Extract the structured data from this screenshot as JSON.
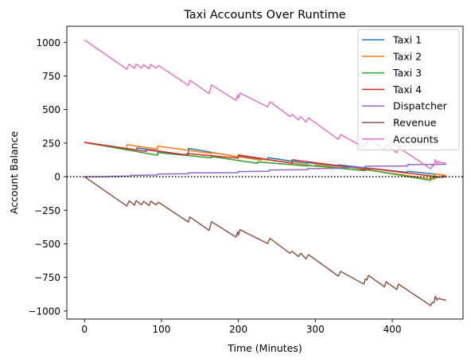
{
  "chart_data": {
    "type": "line",
    "title": "Taxi Accounts Over Runtime",
    "xlabel": "Time (Minutes)",
    "ylabel": "Account Balance",
    "xlim": [
      -23,
      492
    ],
    "ylim": [
      -1060,
      1120
    ],
    "xticks": [
      0,
      100,
      200,
      300,
      400
    ],
    "yticks": [
      -1000,
      -750,
      -500,
      -250,
      0,
      250,
      500,
      750,
      1000
    ],
    "zero_line": {
      "y": 0,
      "style": "dotted",
      "color": "#000000"
    },
    "legend_position": "top-right",
    "series": [
      {
        "name": "Taxi 1",
        "color": "#1f77b4",
        "x": [
          0,
          68,
          68,
          135,
          135,
          200,
          200,
          238,
          238,
          290,
          290,
          330,
          330,
          420,
          420,
          470
        ],
        "y": [
          255,
          198,
          215,
          158,
          210,
          148,
          156,
          125,
          142,
          98,
          106,
          78,
          88,
          32,
          40,
          10
        ]
      },
      {
        "name": "Taxi 2",
        "color": "#ff7f0e",
        "x": [
          0,
          55,
          55,
          95,
          95,
          165,
          165,
          230,
          230,
          300,
          300,
          360,
          360,
          455,
          455,
          470
        ],
        "y": [
          255,
          208,
          238,
          205,
          228,
          172,
          180,
          122,
          132,
          78,
          88,
          46,
          56,
          -20,
          20,
          10
        ]
      },
      {
        "name": "Taxi 3",
        "color": "#2ca02c",
        "x": [
          0,
          95,
          95,
          165,
          165,
          225,
          225,
          290,
          290,
          365,
          365,
          450,
          450,
          470
        ],
        "y": [
          255,
          160,
          180,
          140,
          150,
          100,
          110,
          80,
          85,
          45,
          55,
          -28,
          -10,
          0
        ]
      },
      {
        "name": "Taxi 4",
        "color": "#d62728",
        "x": [
          0,
          80,
          80,
          133,
          133,
          200,
          200,
          270,
          270,
          370,
          370,
          465,
          465,
          470
        ],
        "y": [
          255,
          188,
          200,
          162,
          172,
          138,
          162,
          100,
          126,
          52,
          62,
          -5,
          5,
          0
        ]
      },
      {
        "name": "Dispatcher",
        "color": "#9467bd",
        "x": [
          0,
          30,
          30,
          60,
          60,
          95,
          95,
          135,
          135,
          200,
          200,
          240,
          240,
          290,
          290,
          330,
          330,
          365,
          365,
          420,
          420,
          470
        ],
        "y": [
          0,
          0,
          3,
          5,
          10,
          12,
          20,
          22,
          28,
          30,
          38,
          40,
          50,
          52,
          60,
          62,
          68,
          70,
          78,
          80,
          90,
          92
        ]
      },
      {
        "name": "Revenue",
        "color": "#8c564b",
        "x": [
          0,
          55,
          58,
          65,
          67,
          74,
          77,
          84,
          86,
          93,
          96,
          135,
          137,
          162,
          165,
          197,
          199,
          200,
          202,
          238,
          241,
          267,
          270,
          278,
          281,
          288,
          291,
          330,
          333,
          363,
          365,
          367,
          369,
          390,
          392,
          406,
          408,
          450,
          452,
          454,
          456,
          458,
          460,
          462,
          470
        ],
        "y": [
          0,
          -218,
          -180,
          -212,
          -178,
          -210,
          -184,
          -215,
          -182,
          -210,
          -190,
          -338,
          -300,
          -400,
          -335,
          -450,
          -410,
          -435,
          -395,
          -498,
          -460,
          -570,
          -555,
          -595,
          -570,
          -612,
          -580,
          -740,
          -705,
          -800,
          -760,
          -770,
          -735,
          -820,
          -782,
          -840,
          -800,
          -960,
          -935,
          -940,
          -890,
          -920,
          -905,
          -910,
          -920
        ]
      },
      {
        "name": "Accounts",
        "color": "#e377c2",
        "x": [
          0,
          55,
          58,
          65,
          67,
          74,
          77,
          84,
          86,
          93,
          96,
          135,
          137,
          162,
          165,
          197,
          199,
          200,
          202,
          238,
          241,
          267,
          270,
          278,
          281,
          288,
          291,
          330,
          333,
          363,
          365,
          367,
          369,
          390,
          392,
          406,
          408,
          450,
          452,
          454,
          456,
          458,
          460,
          462,
          470
        ],
        "y": [
          1018,
          800,
          838,
          806,
          840,
          808,
          834,
          803,
          836,
          808,
          828,
          680,
          718,
          618,
          683,
          568,
          608,
          583,
          623,
          520,
          558,
          448,
          463,
          423,
          448,
          406,
          438,
          278,
          313,
          218,
          258,
          248,
          283,
          198,
          236,
          178,
          218,
          58,
          83,
          78,
          128,
          98,
          113,
          108,
          98
        ]
      }
    ]
  }
}
